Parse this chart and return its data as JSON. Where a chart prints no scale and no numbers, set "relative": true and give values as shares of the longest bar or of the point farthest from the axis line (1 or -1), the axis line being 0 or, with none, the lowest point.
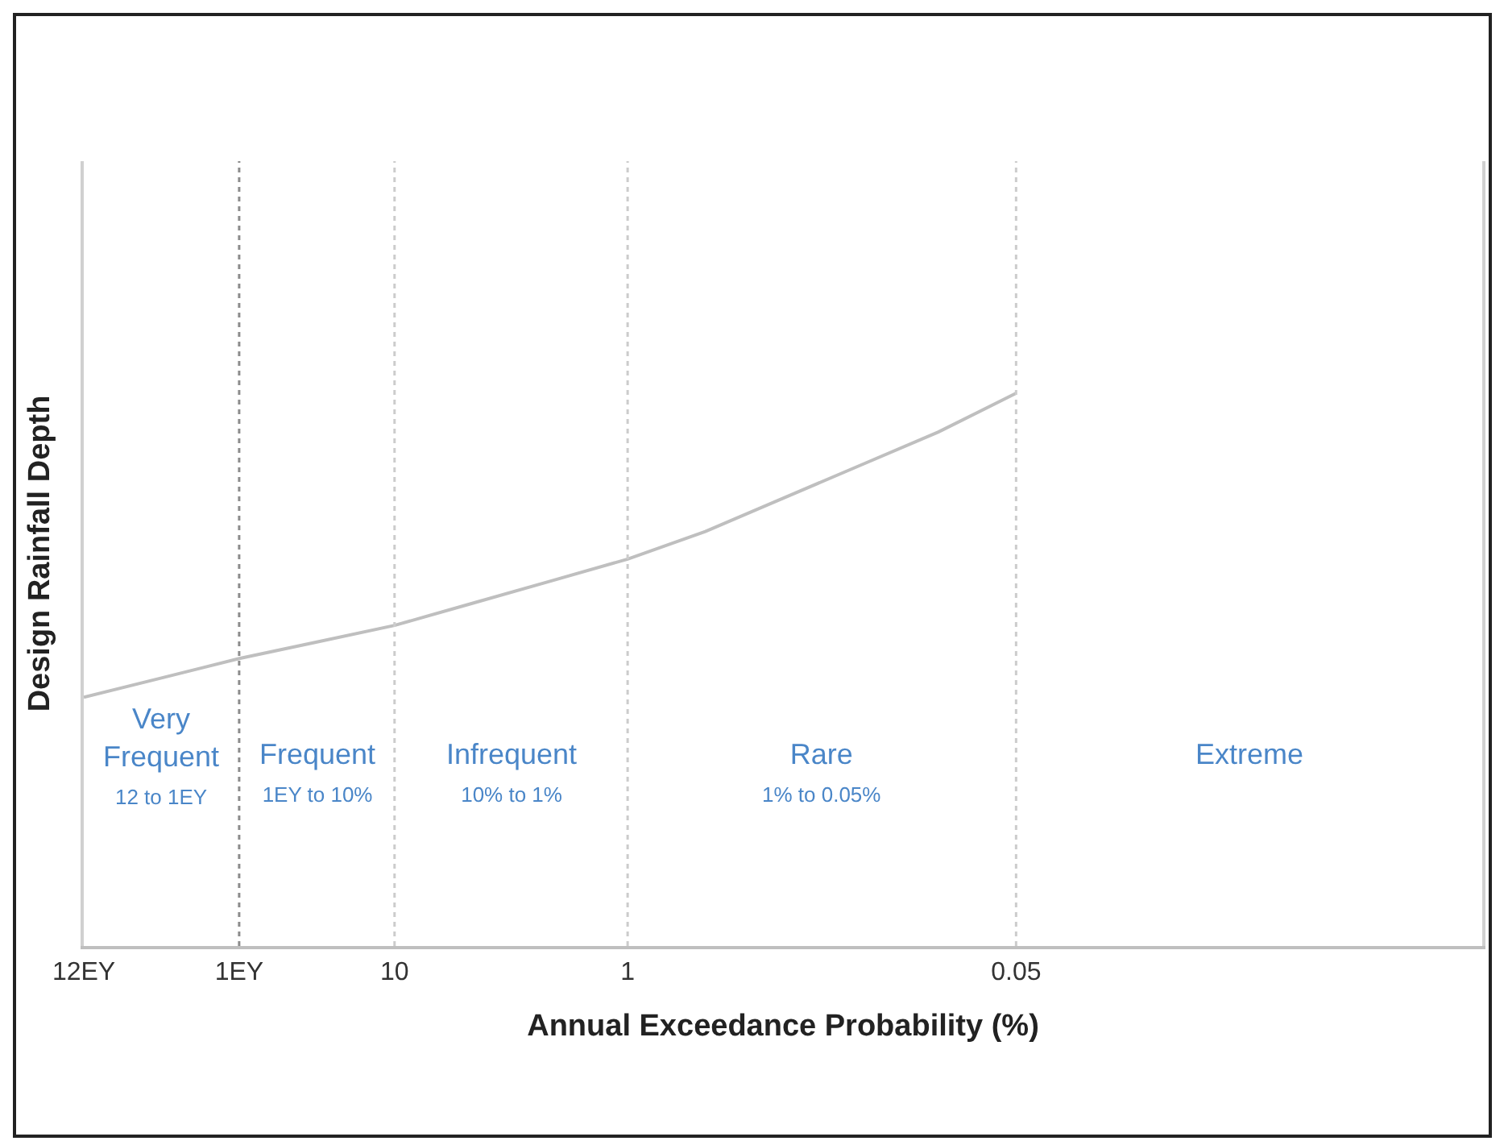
{
  "chart_data": {
    "type": "line",
    "relative": true,
    "xlabel": "Annual Exceedance Probability (%)",
    "ylabel": "Design Rainfall Depth",
    "categories": [
      "12EY",
      null,
      "1EY",
      null,
      "10",
      null,
      null,
      "1",
      null,
      null,
      null,
      null,
      "0.05",
      null,
      null,
      null,
      null,
      null,
      null
    ],
    "series": [
      {
        "color": "#bfbfbf",
        "values": [
          0.45,
          0.485,
          0.52,
          0.55,
          0.58,
          0.62,
          0.66,
          0.7,
          0.75,
          0.81,
          0.87,
          0.93,
          1,
          null,
          null,
          null,
          null,
          null,
          null
        ]
      }
    ],
    "ref_lines": [
      {
        "axis": "x",
        "value": "1EY",
        "color": "#8c8c8c",
        "line_style": "dotted"
      },
      {
        "axis": "x",
        "value": "10",
        "color": "#cccccc",
        "line_style": "dotted"
      },
      {
        "axis": "x",
        "value": "1",
        "color": "#cccccc",
        "line_style": "dotted"
      },
      {
        "axis": "x",
        "value": "0.05",
        "color": "#cccccc",
        "line_style": "dotted"
      }
    ],
    "annotations": [
      "Very\nFrequent\n12 to 1EY",
      "Frequent\n1EY to 10%",
      "Infrequent\n10% to 1%",
      "Rare\n1% to 0.05%",
      "Extreme"
    ]
  }
}
